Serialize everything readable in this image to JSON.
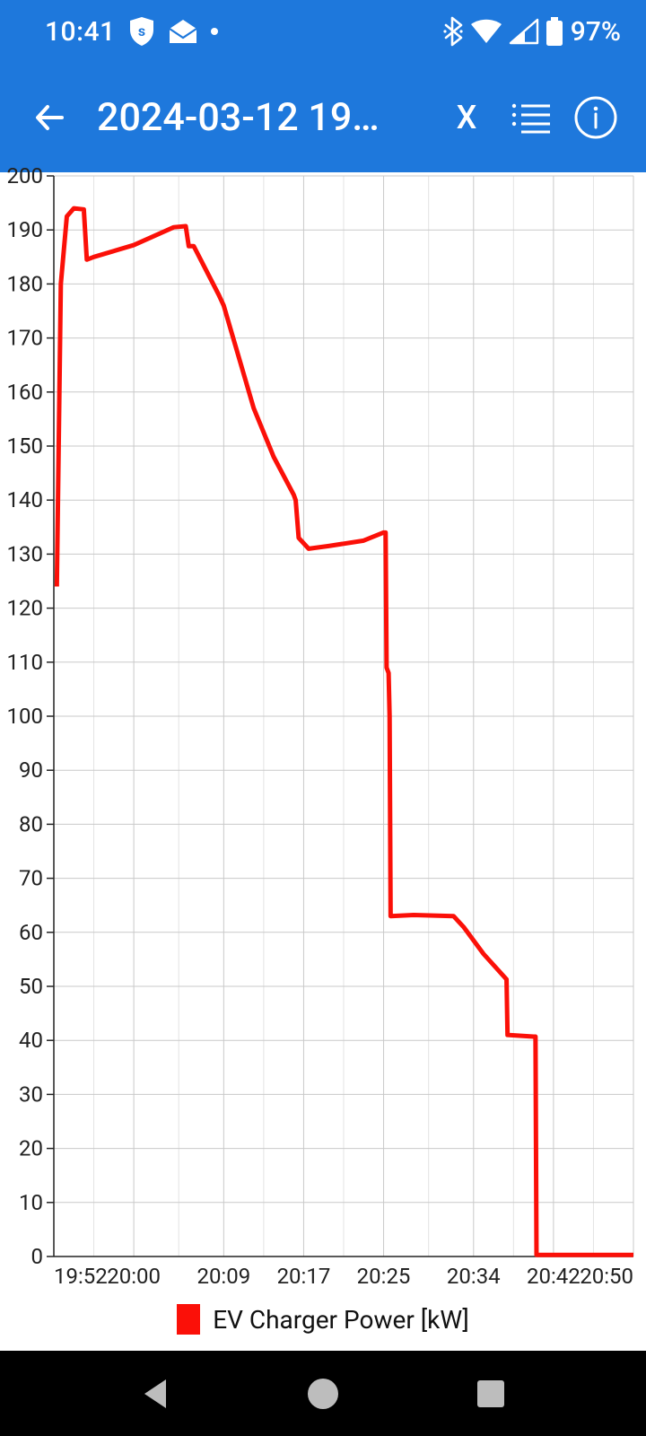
{
  "status": {
    "time": "10:41",
    "battery_text": "97%"
  },
  "appbar": {
    "title": "2024-03-12 19…",
    "close_label": "X"
  },
  "chart": {
    "type": "line",
    "background_color": "#ffffff",
    "grid_color_major": "#c9c9c9",
    "grid_color_minor": "#e3e3e3",
    "series_color": "#fb1008",
    "line_width": 5,
    "y": {
      "min": 0,
      "max": 200,
      "tick_step": 10,
      "labels": [
        "200",
        "190",
        "180",
        "170",
        "160",
        "150",
        "140",
        "130",
        "120",
        "110",
        "100",
        "90",
        "80",
        "70",
        "60",
        "50",
        "40",
        "30",
        "20",
        "10",
        "0"
      ],
      "label_fontsize": 24
    },
    "x": {
      "min_minutes": 1192,
      "max_minutes": 1250,
      "ticks_minutes": [
        1192,
        1200,
        1209,
        1217,
        1225,
        1234,
        1242,
        1250
      ],
      "tick_labels": [
        "19:52",
        "20:00",
        "20:09",
        "20:17",
        "20:25",
        "20:34",
        "20:42",
        "20:50"
      ],
      "label_fontsize": 24
    },
    "series": [
      {
        "name": "EV Charger Power [kW]",
        "color": "#fb1008",
        "points": [
          [
            1192.3,
            124
          ],
          [
            1192.7,
            180
          ],
          [
            1193.3,
            192.5
          ],
          [
            1194.0,
            194
          ],
          [
            1195.0,
            193.8
          ],
          [
            1195.3,
            184.5
          ],
          [
            1196.0,
            185
          ],
          [
            1200.0,
            187.2
          ],
          [
            1204.0,
            190.5
          ],
          [
            1205.2,
            190.7
          ],
          [
            1205.5,
            187
          ],
          [
            1206.0,
            187
          ],
          [
            1208.5,
            178
          ],
          [
            1209.0,
            176
          ],
          [
            1212.0,
            157
          ],
          [
            1214.0,
            148
          ],
          [
            1216.0,
            141
          ],
          [
            1216.2,
            140
          ],
          [
            1216.5,
            133
          ],
          [
            1217.5,
            131
          ],
          [
            1219.5,
            131.5
          ],
          [
            1223.0,
            132.5
          ],
          [
            1225.0,
            134
          ],
          [
            1225.2,
            134
          ],
          [
            1225.3,
            109
          ],
          [
            1225.5,
            108
          ],
          [
            1225.6,
            100
          ],
          [
            1225.7,
            63
          ],
          [
            1228.0,
            63.2
          ],
          [
            1232.0,
            63
          ],
          [
            1233.0,
            61
          ],
          [
            1235.0,
            56
          ],
          [
            1237.3,
            51.3
          ],
          [
            1237.4,
            41
          ],
          [
            1240.0,
            40.7
          ],
          [
            1240.2,
            40.7
          ],
          [
            1240.3,
            0.3
          ],
          [
            1250.0,
            0.3
          ]
        ]
      }
    ],
    "legend": {
      "label": "EV Charger Power [kW]",
      "label_fontsize": 28,
      "swatch_color": "#fb1008"
    }
  },
  "colors": {
    "brand": "#1e78dc",
    "on_brand": "#ffffff",
    "nav_bg": "#000000",
    "nav_icon": "#bdbdbd"
  }
}
